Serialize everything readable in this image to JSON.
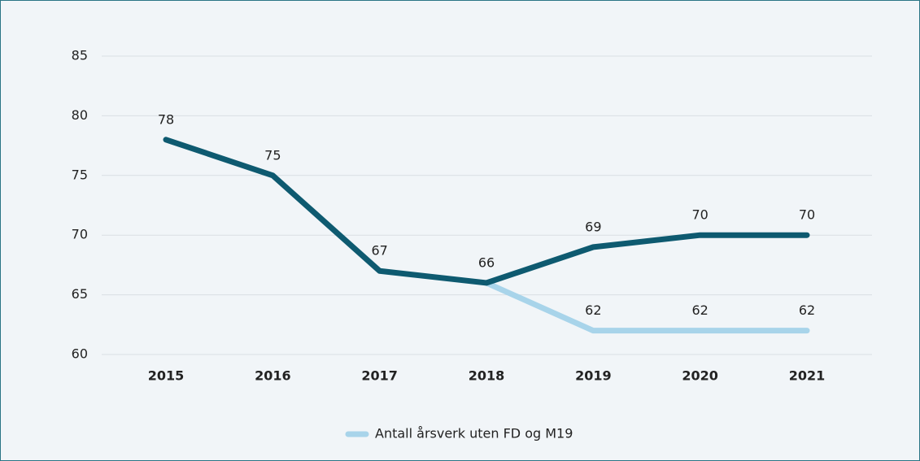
{
  "chart_data": {
    "type": "line",
    "categories": [
      "2015",
      "2016",
      "2017",
      "2018",
      "2019",
      "2020",
      "2021"
    ],
    "series": [
      {
        "color": "#0e5a70",
        "values": [
          78,
          75,
          67,
          66,
          69,
          70,
          70
        ]
      },
      {
        "name": "Antall årsverk uten FD og M19",
        "color": "#a8d4ea",
        "values": [
          null,
          null,
          null,
          66,
          62,
          62,
          62
        ]
      }
    ],
    "ylim": [
      60,
      85
    ],
    "yticks": [
      60,
      65,
      70,
      75,
      80,
      85
    ],
    "grid": true,
    "legend": "bottom"
  }
}
